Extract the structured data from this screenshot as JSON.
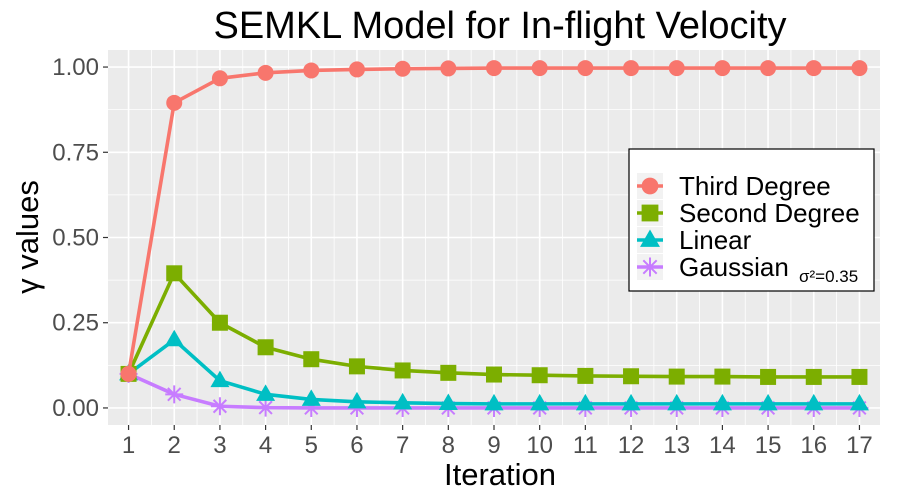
{
  "chart_data": {
    "type": "line",
    "title": "SEMKL Model for In-flight Velocity",
    "xlabel": "Iteration",
    "ylabel": "γ values",
    "ylabel_symbol": "γ",
    "ylabel_text": "values",
    "xlim": [
      0.55,
      17.45
    ],
    "ylim": [
      -0.05,
      1.05
    ],
    "grid": true,
    "legend_position": "right",
    "x": [
      1,
      2,
      3,
      4,
      5,
      6,
      7,
      8,
      9,
      10,
      11,
      12,
      13,
      14,
      15,
      16,
      17
    ],
    "x_tick_labels": [
      "1",
      "2",
      "3",
      "4",
      "5",
      "6",
      "7",
      "8",
      "9",
      "10",
      "11",
      "12",
      "13",
      "14",
      "15",
      "16",
      "17"
    ],
    "y_ticks": [
      0.0,
      0.25,
      0.5,
      0.75,
      1.0
    ],
    "y_tick_labels": [
      "0.00",
      "0.25",
      "0.50",
      "0.75",
      "1.00"
    ],
    "series": [
      {
        "name": "Third Degree",
        "color": "#F8766D",
        "marker": "circle",
        "values": [
          0.1,
          0.895,
          0.967,
          0.983,
          0.99,
          0.993,
          0.995,
          0.996,
          0.997,
          0.997,
          0.997,
          0.997,
          0.997,
          0.997,
          0.997,
          0.997,
          0.997
        ]
      },
      {
        "name": "Second Degree",
        "color": "#7CAE00",
        "marker": "square",
        "values": [
          0.1,
          0.395,
          0.25,
          0.178,
          0.143,
          0.122,
          0.11,
          0.103,
          0.098,
          0.096,
          0.094,
          0.093,
          0.092,
          0.092,
          0.091,
          0.091,
          0.091
        ]
      },
      {
        "name": "Linear",
        "color": "#00BFC4",
        "marker": "triangle",
        "values": [
          0.1,
          0.2,
          0.08,
          0.04,
          0.025,
          0.018,
          0.015,
          0.013,
          0.012,
          0.012,
          0.012,
          0.012,
          0.012,
          0.012,
          0.012,
          0.012,
          0.012
        ]
      },
      {
        "name": "Gaussian",
        "subscript": "σ²=0.35",
        "color": "#C77CFF",
        "marker": "asterisk",
        "values": [
          0.1,
          0.04,
          0.005,
          0.001,
          0.0,
          0.0,
          0.0,
          0.0,
          0.0,
          0.0,
          0.0,
          0.0,
          0.0,
          0.0,
          0.0,
          0.0,
          0.0
        ]
      }
    ]
  },
  "colors": {
    "panel_background": "#EBEBEB",
    "grid_major": "#FFFFFF",
    "tick_text": "#4D4D4D"
  }
}
